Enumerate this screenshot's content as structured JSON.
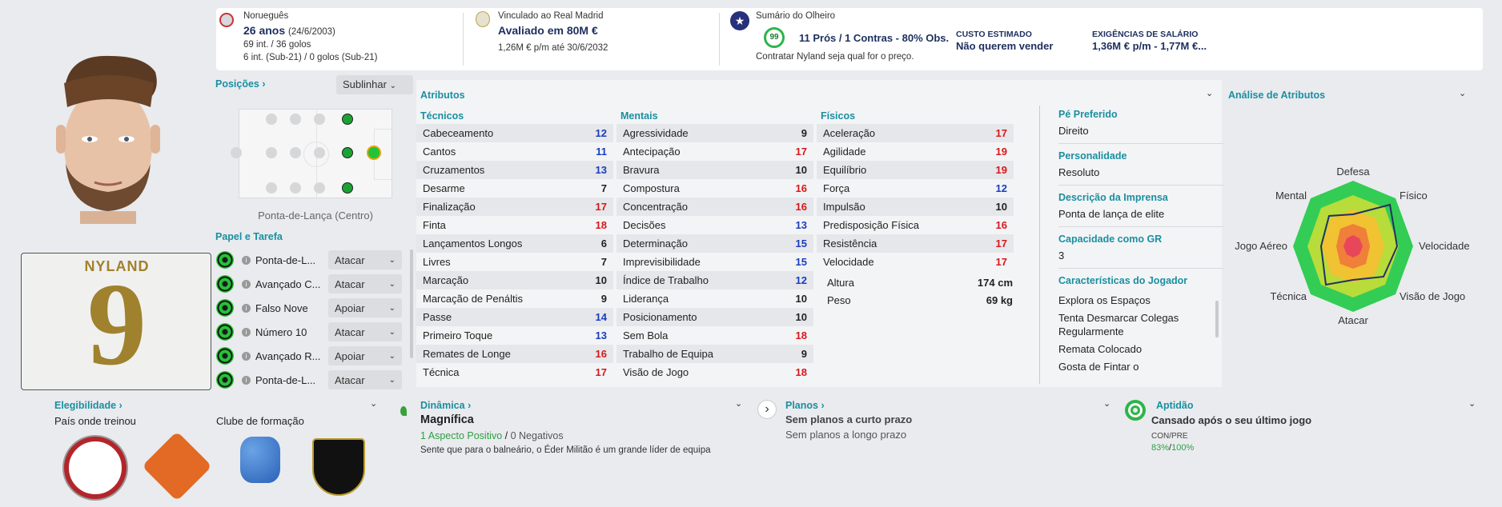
{
  "header": {
    "nationality": "Norueguês",
    "age": "26 anos",
    "dob": "(24/6/2003)",
    "caps": "69 int. / 36 golos",
    "u21": "6 int. (Sub-21) / 0 golos (Sub-21)",
    "club_line": "Vinculado ao Real Madrid",
    "value": "Avaliado em 80M €",
    "contract": "1,26M € p/m até 30/6/2032",
    "scout_title": "Sumário do Olheiro",
    "scout_score": "99",
    "scout_summary": "11 Prós / 1 Contras - 80% Obs.",
    "scout_rec": "Contratar Nyland seja qual for o preço.",
    "cost_title": "CUSTO ESTIMADO",
    "cost_value": "Não querem vender",
    "wage_title": "EXIGÊNCIAS DE SALÁRIO",
    "wage_value": "1,36M € p/m - 1,77M €..."
  },
  "player": {
    "shirt_name": "NYLAND",
    "shirt_number": "9"
  },
  "positions": {
    "title": "Posições",
    "highlight_label": "Sublinhar",
    "position_name": "Ponta-de-Lança (Centro)"
  },
  "roles": {
    "title": "Papel e Tarefa",
    "items": [
      {
        "name": "Ponta-de-L...",
        "duty": "Atacar"
      },
      {
        "name": "Avançado C...",
        "duty": "Atacar"
      },
      {
        "name": "Falso Nove",
        "duty": "Apoiar"
      },
      {
        "name": "Número 10",
        "duty": "Atacar"
      },
      {
        "name": "Avançado R...",
        "duty": "Apoiar"
      },
      {
        "name": "Ponta-de-L...",
        "duty": "Atacar"
      }
    ]
  },
  "attributes": {
    "title": "Atributos",
    "technical": {
      "title": "Técnicos",
      "items": [
        [
          "Cabeceamento",
          "12"
        ],
        [
          "Cantos",
          "11"
        ],
        [
          "Cruzamentos",
          "13"
        ],
        [
          "Desarme",
          "7"
        ],
        [
          "Finalização",
          "17"
        ],
        [
          "Finta",
          "18"
        ],
        [
          "Lançamentos Longos",
          "6"
        ],
        [
          "Livres",
          "7"
        ],
        [
          "Marcação",
          "10"
        ],
        [
          "Marcação de Penáltis",
          "9"
        ],
        [
          "Passe",
          "14"
        ],
        [
          "Primeiro Toque",
          "13"
        ],
        [
          "Remates de Longe",
          "16"
        ],
        [
          "Técnica",
          "17"
        ]
      ]
    },
    "mental": {
      "title": "Mentais",
      "items": [
        [
          "Agressividade",
          "9"
        ],
        [
          "Antecipação",
          "17"
        ],
        [
          "Bravura",
          "10"
        ],
        [
          "Compostura",
          "16"
        ],
        [
          "Concentração",
          "16"
        ],
        [
          "Decisões",
          "13"
        ],
        [
          "Determinação",
          "15"
        ],
        [
          "Imprevisibilidade",
          "15"
        ],
        [
          "Índice de Trabalho",
          "12"
        ],
        [
          "Liderança",
          "10"
        ],
        [
          "Posicionamento",
          "10"
        ],
        [
          "Sem Bola",
          "18"
        ],
        [
          "Trabalho de Equipa",
          "9"
        ],
        [
          "Visão de Jogo",
          "18"
        ]
      ]
    },
    "physical": {
      "title": "Físicos",
      "items": [
        [
          "Aceleração",
          "17"
        ],
        [
          "Agilidade",
          "19"
        ],
        [
          "Equilíbrio",
          "19"
        ],
        [
          "Força",
          "12"
        ],
        [
          "Impulsão",
          "10"
        ],
        [
          "Predisposição Física",
          "16"
        ],
        [
          "Resistência",
          "17"
        ],
        [
          "Velocidade",
          "17"
        ]
      ]
    },
    "height_label": "Altura",
    "height": "174 cm",
    "weight_label": "Peso",
    "weight": "69 kg"
  },
  "info": {
    "foot_title": "Pé Preferido",
    "foot": "Direito",
    "pers_title": "Personalidade",
    "pers": "Resoluto",
    "press_title": "Descrição da Imprensa",
    "press": "Ponta de lança de elite",
    "gk_title": "Capacidade como GR",
    "gk": "3",
    "traits_title": "Características do Jogador",
    "traits": [
      "Explora os Espaços",
      "Tenta Desmarcar Colegas Regularmente",
      "Remata Colocado",
      "Gosta de Fintar o"
    ]
  },
  "analysis": {
    "title": "Análise de Atributos",
    "labels": {
      "top": "Defesa",
      "tr": "Físico",
      "r": "Velocidade",
      "br": "Visão de Jogo",
      "b": "Atacar",
      "bl": "Técnica",
      "l": "Jogo Aéreo",
      "tl": "Mental"
    }
  },
  "bottom": {
    "elig_title": "Elegibilidade",
    "trained_in": "País onde treinou",
    "youth_club": "Clube de formação",
    "dyn_title": "Dinâmica",
    "dyn_value": "Magnífica",
    "dyn_pos": "1 Aspecto Positivo",
    "dyn_sep": "/",
    "dyn_neg": "0 Negativos",
    "dyn_desc": "Sente que para o balneário, o Éder Militão é um grande líder de equipa",
    "plans_title": "Planos",
    "plans_short": "Sem planos a curto prazo",
    "plans_long": "Sem planos a longo prazo",
    "fit_title": "Aptidão",
    "fit_value": "Cansado após o seu último jogo",
    "fit_label": "CON/PRE",
    "fit_con": "83%",
    "fit_sep": "/",
    "fit_pre": "100%"
  },
  "colors": {
    "accent": "#1a8fa0",
    "high": "#d8171b",
    "mid": "#1a3dbf"
  }
}
